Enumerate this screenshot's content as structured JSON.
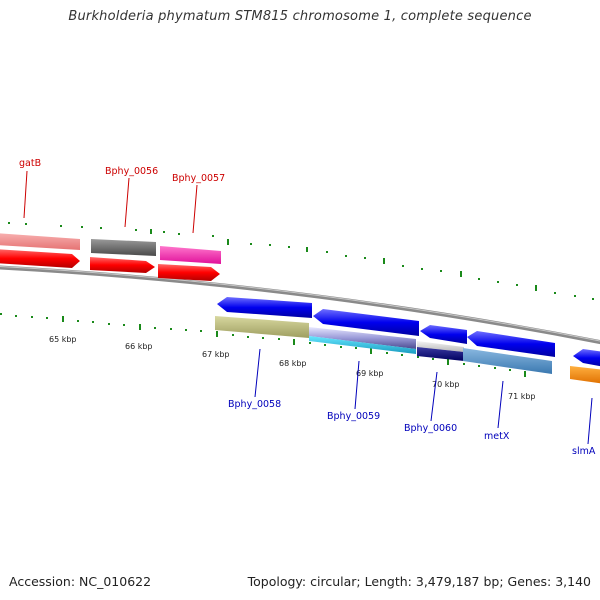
{
  "title": "Burkholderia phymatum STM815 chromosome 1, complete sequence",
  "footer": {
    "accession": "Accession: NC_010622",
    "summary": "Topology: circular; Length: 3,479,187 bp; Genes: 3,140"
  },
  "ticks": [
    "65 kbp",
    "66 kbp",
    "67 kbp",
    "68 kbp",
    "69 kbp",
    "70 kbp",
    "71 kbp"
  ],
  "top_genes": [
    {
      "name": "gatB",
      "color": "#cc0000"
    },
    {
      "name": "Bphy_0056",
      "color": "#cc0000"
    },
    {
      "name": "Bphy_0057",
      "color": "#cc0000"
    }
  ],
  "bottom_genes": [
    {
      "name": "Bphy_0058",
      "color": "#0000bb"
    },
    {
      "name": "Bphy_0059",
      "color": "#0000bb"
    },
    {
      "name": "Bphy_0060",
      "color": "#0000bb"
    },
    {
      "name": "metX",
      "color": "#0000bb"
    },
    {
      "name": "slmA",
      "color": "#0000bb"
    }
  ],
  "colors": {
    "forward_cds": "#ff0000",
    "reverse_cds": "#0000ee",
    "backbone": "#8c8c8c",
    "tick": "#1a8a1a"
  }
}
